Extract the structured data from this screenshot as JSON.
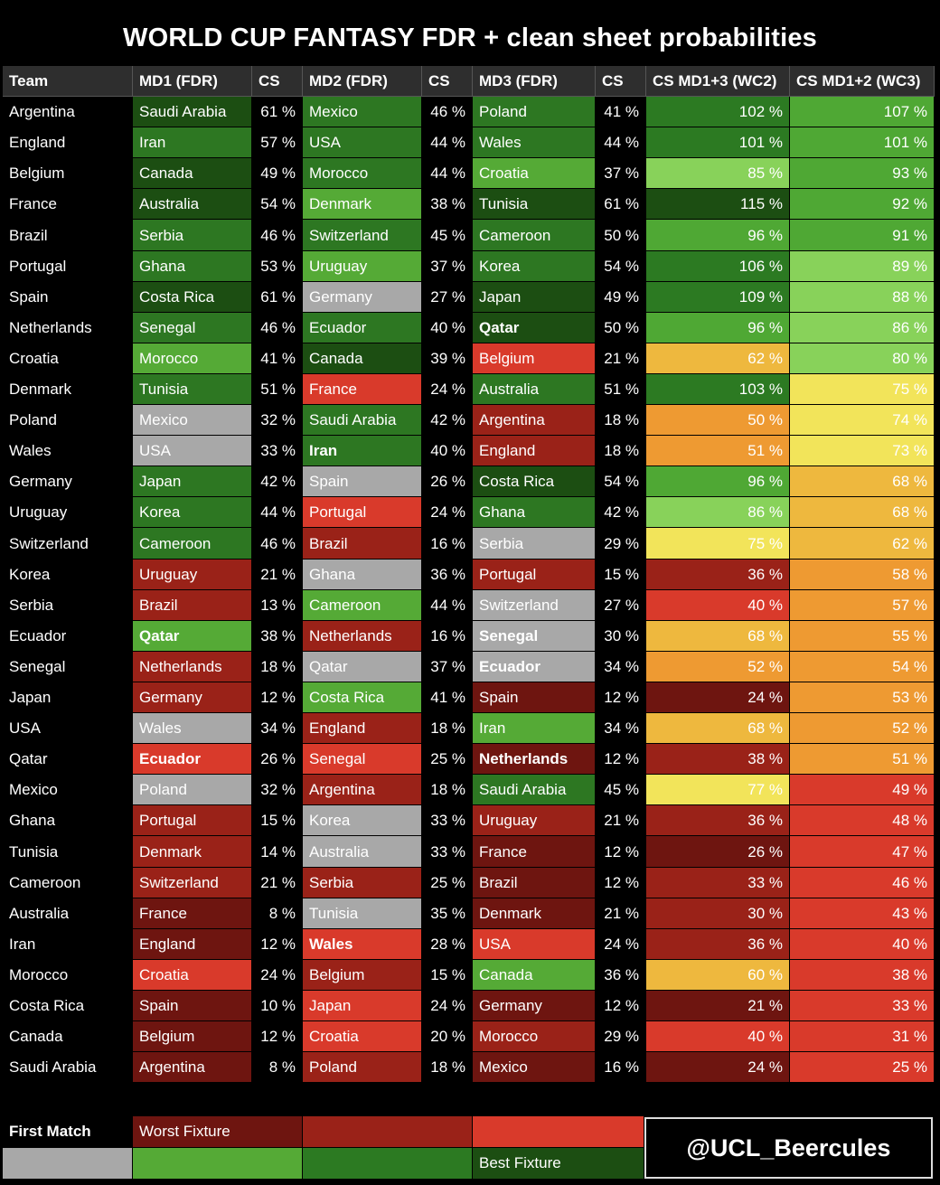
{
  "title": "WORLD CUP FANTASY FDR + clean sheet probabilities",
  "credit": "@UCL_Beercules",
  "legend": {
    "first_match_label": "First Match",
    "worst_label": "Worst Fixture",
    "best_label": "Best Fixture",
    "first_match_color": "#a8a8a8",
    "scale_top": [
      "#6e1510",
      "#9a2218",
      "#d93a2b"
    ],
    "scale_bottom": [
      "#55aa36",
      "#2c7a22",
      "#1c4e12"
    ]
  },
  "fdr_palette": {
    "1": "#1c4e12",
    "2": "#2d7722",
    "3": "#55aa36",
    "4": "#a8a8a8",
    "5": "#d93a2b",
    "6": "#9a2218",
    "7": "#6e1510"
  },
  "heat_palette": {
    "A": "#1c4e12",
    "B": "#2c7a22",
    "C": "#4fa834",
    "D": "#88d25a",
    "E": "#f2e45a",
    "F": "#eeb83e",
    "G": "#ee9a32",
    "H": "#d93a2b",
    "I": "#9a2218",
    "J": "#6e1510"
  },
  "chart_data": {
    "type": "table",
    "columns": [
      "Team",
      "MD1 (FDR)",
      "CS",
      "MD2 (FDR)",
      "CS",
      "MD3 (FDR)",
      "CS",
      "CS MD1+3 (WC2)",
      "CS MD1+2 (WC3)"
    ],
    "rows": [
      {
        "team": "Argentina",
        "md1": "Saudi Arabia",
        "cs1": "61 %",
        "md2": "Mexico",
        "cs2": "46 %",
        "md3": "Poland",
        "cs3": "41 %",
        "wc2": "102 %",
        "wc3": "107 %"
      },
      {
        "team": "England",
        "md1": "Iran",
        "cs1": "57 %",
        "md2": "USA",
        "cs2": "44 %",
        "md3": "Wales",
        "cs3": "44 %",
        "wc2": "101 %",
        "wc3": "101 %"
      },
      {
        "team": "Belgium",
        "md1": "Canada",
        "cs1": "49 %",
        "md2": "Morocco",
        "cs2": "44 %",
        "md3": "Croatia",
        "cs3": "37 %",
        "wc2": "85 %",
        "wc3": "93 %"
      },
      {
        "team": "France",
        "md1": "Australia",
        "cs1": "54 %",
        "md2": "Denmark",
        "cs2": "38 %",
        "md3": "Tunisia",
        "cs3": "61 %",
        "wc2": "115 %",
        "wc3": "92 %"
      },
      {
        "team": "Brazil",
        "md1": "Serbia",
        "cs1": "46 %",
        "md2": "Switzerland",
        "cs2": "45 %",
        "md3": "Cameroon",
        "cs3": "50 %",
        "wc2": "96 %",
        "wc3": "91 %"
      },
      {
        "team": "Portugal",
        "md1": "Ghana",
        "cs1": "53 %",
        "md2": "Uruguay",
        "cs2": "37 %",
        "md3": "Korea",
        "cs3": "54 %",
        "wc2": "106 %",
        "wc3": "89 %"
      },
      {
        "team": "Spain",
        "md1": "Costa Rica",
        "cs1": "61 %",
        "md2": "Germany",
        "cs2": "27 %",
        "md3": "Japan",
        "cs3": "49 %",
        "wc2": "109 %",
        "wc3": "88 %"
      },
      {
        "team": "Netherlands",
        "md1": "Senegal",
        "cs1": "46 %",
        "md2": "Ecuador",
        "cs2": "40 %",
        "md3": "Qatar",
        "cs3": "50 %",
        "wc2": "96 %",
        "wc3": "86 %"
      },
      {
        "team": "Croatia",
        "md1": "Morocco",
        "cs1": "41 %",
        "md2": "Canada",
        "cs2": "39 %",
        "md3": "Belgium",
        "cs3": "21 %",
        "wc2": "62 %",
        "wc3": "80 %"
      },
      {
        "team": "Denmark",
        "md1": "Tunisia",
        "cs1": "51 %",
        "md2": "France",
        "cs2": "24 %",
        "md3": "Australia",
        "cs3": "51 %",
        "wc2": "103 %",
        "wc3": "75 %"
      },
      {
        "team": "Poland",
        "md1": "Mexico",
        "cs1": "32 %",
        "md2": "Saudi Arabia",
        "cs2": "42 %",
        "md3": "Argentina",
        "cs3": "18 %",
        "wc2": "50 %",
        "wc3": "74 %"
      },
      {
        "team": "Wales",
        "md1": "USA",
        "cs1": "33 %",
        "md2": "Iran",
        "cs2": "40 %",
        "md3": "England",
        "cs3": "18 %",
        "wc2": "51 %",
        "wc3": "73 %"
      },
      {
        "team": "Germany",
        "md1": "Japan",
        "cs1": "42 %",
        "md2": "Spain",
        "cs2": "26 %",
        "md3": "Costa Rica",
        "cs3": "54 %",
        "wc2": "96 %",
        "wc3": "68 %"
      },
      {
        "team": "Uruguay",
        "md1": "Korea",
        "cs1": "44 %",
        "md2": "Portugal",
        "cs2": "24 %",
        "md3": "Ghana",
        "cs3": "42 %",
        "wc2": "86 %",
        "wc3": "68 %"
      },
      {
        "team": "Switzerland",
        "md1": "Cameroon",
        "cs1": "46 %",
        "md2": "Brazil",
        "cs2": "16 %",
        "md3": "Serbia",
        "cs3": "29 %",
        "wc2": "75 %",
        "wc3": "62 %"
      },
      {
        "team": "Korea",
        "md1": "Uruguay",
        "cs1": "21 %",
        "md2": "Ghana",
        "cs2": "36 %",
        "md3": "Portugal",
        "cs3": "15 %",
        "wc2": "36 %",
        "wc3": "58 %"
      },
      {
        "team": "Serbia",
        "md1": "Brazil",
        "cs1": "13 %",
        "md2": "Cameroon",
        "cs2": "44 %",
        "md3": "Switzerland",
        "cs3": "27 %",
        "wc2": "40 %",
        "wc3": "57 %"
      },
      {
        "team": "Ecuador",
        "md1": "Qatar",
        "cs1": "38 %",
        "md2": "Netherlands",
        "cs2": "16 %",
        "md3": "Senegal",
        "cs3": "30 %",
        "wc2": "68 %",
        "wc3": "55 %"
      },
      {
        "team": "Senegal",
        "md1": "Netherlands",
        "cs1": "18 %",
        "md2": "Qatar",
        "cs2": "37 %",
        "md3": "Ecuador",
        "cs3": "34 %",
        "wc2": "52 %",
        "wc3": "54 %"
      },
      {
        "team": "Japan",
        "md1": "Germany",
        "cs1": "12 %",
        "md2": "Costa Rica",
        "cs2": "41 %",
        "md3": "Spain",
        "cs3": "12 %",
        "wc2": "24 %",
        "wc3": "53 %"
      },
      {
        "team": "USA",
        "md1": "Wales",
        "cs1": "34 %",
        "md2": "England",
        "cs2": "18 %",
        "md3": "Iran",
        "cs3": "34 %",
        "wc2": "68 %",
        "wc3": "52 %"
      },
      {
        "team": "Qatar",
        "md1": "Ecuador",
        "cs1": "26 %",
        "md2": "Senegal",
        "cs2": "25 %",
        "md3": "Netherlands",
        "cs3": "12 %",
        "wc2": "38 %",
        "wc3": "51 %"
      },
      {
        "team": "Mexico",
        "md1": "Poland",
        "cs1": "32 %",
        "md2": "Argentina",
        "cs2": "18 %",
        "md3": "Saudi Arabia",
        "cs3": "45 %",
        "wc2": "77 %",
        "wc3": "49 %"
      },
      {
        "team": "Ghana",
        "md1": "Portugal",
        "cs1": "15 %",
        "md2": "Korea",
        "cs2": "33 %",
        "md3": "Uruguay",
        "cs3": "21 %",
        "wc2": "36 %",
        "wc3": "48 %"
      },
      {
        "team": "Tunisia",
        "md1": "Denmark",
        "cs1": "14 %",
        "md2": "Australia",
        "cs2": "33 %",
        "md3": "France",
        "cs3": "12 %",
        "wc2": "26 %",
        "wc3": "47 %"
      },
      {
        "team": "Cameroon",
        "md1": "Switzerland",
        "cs1": "21 %",
        "md2": "Serbia",
        "cs2": "25 %",
        "md3": "Brazil",
        "cs3": "12 %",
        "wc2": "33 %",
        "wc3": "46 %"
      },
      {
        "team": "Australia",
        "md1": "France",
        "cs1": "8 %",
        "md2": "Tunisia",
        "cs2": "35 %",
        "md3": "Denmark",
        "cs3": "21 %",
        "wc2": "30 %",
        "wc3": "43 %"
      },
      {
        "team": "Iran",
        "md1": "England",
        "cs1": "12 %",
        "md2": "Wales",
        "cs2": "28 %",
        "md3": "USA",
        "cs3": "24 %",
        "wc2": "36 %",
        "wc3": "40 %"
      },
      {
        "team": "Morocco",
        "md1": "Croatia",
        "cs1": "24 %",
        "md2": "Belgium",
        "cs2": "15 %",
        "md3": "Canada",
        "cs3": "36 %",
        "wc2": "60 %",
        "wc3": "38 %"
      },
      {
        "team": "Costa Rica",
        "md1": "Spain",
        "cs1": "10 %",
        "md2": "Japan",
        "cs2": "24 %",
        "md3": "Germany",
        "cs3": "12 %",
        "wc2": "21 %",
        "wc3": "33 %"
      },
      {
        "team": "Canada",
        "md1": "Belgium",
        "cs1": "12 %",
        "md2": "Croatia",
        "cs2": "20 %",
        "md3": "Morocco",
        "cs3": "29 %",
        "wc2": "40 %",
        "wc3": "31 %"
      },
      {
        "team": "Saudi Arabia",
        "md1": "Argentina",
        "cs1": "8 %",
        "md2": "Poland",
        "cs2": "18 %",
        "md3": "Mexico",
        "cs3": "16 %",
        "wc2": "24 %",
        "wc3": "25 %"
      }
    ],
    "fdr": [
      [
        1,
        2,
        2
      ],
      [
        2,
        2,
        2
      ],
      [
        1,
        2,
        3
      ],
      [
        1,
        3,
        1
      ],
      [
        2,
        2,
        2
      ],
      [
        2,
        3,
        2
      ],
      [
        1,
        4,
        1
      ],
      [
        2,
        2,
        1
      ],
      [
        3,
        1,
        5
      ],
      [
        2,
        5,
        2
      ],
      [
        4,
        2,
        6
      ],
      [
        4,
        2,
        6
      ],
      [
        2,
        4,
        1
      ],
      [
        2,
        5,
        2
      ],
      [
        2,
        6,
        4
      ],
      [
        6,
        4,
        6
      ],
      [
        6,
        3,
        4
      ],
      [
        3,
        6,
        4
      ],
      [
        6,
        4,
        4
      ],
      [
        6,
        3,
        7
      ],
      [
        4,
        6,
        3
      ],
      [
        5,
        5,
        7
      ],
      [
        4,
        6,
        2
      ],
      [
        6,
        4,
        6
      ],
      [
        6,
        4,
        7
      ],
      [
        6,
        6,
        7
      ],
      [
        7,
        4,
        7
      ],
      [
        7,
        5,
        5
      ],
      [
        5,
        6,
        3
      ],
      [
        7,
        5,
        7
      ],
      [
        7,
        5,
        6
      ],
      [
        7,
        6,
        7
      ]
    ],
    "bold_opponents": [
      [
        0,
        0,
        0
      ],
      [
        0,
        0,
        0
      ],
      [
        0,
        0,
        0
      ],
      [
        0,
        0,
        0
      ],
      [
        0,
        0,
        0
      ],
      [
        0,
        0,
        0
      ],
      [
        0,
        0,
        0
      ],
      [
        0,
        0,
        1
      ],
      [
        0,
        0,
        0
      ],
      [
        0,
        0,
        0
      ],
      [
        0,
        0,
        0
      ],
      [
        0,
        1,
        0
      ],
      [
        0,
        0,
        0
      ],
      [
        0,
        0,
        0
      ],
      [
        0,
        0,
        0
      ],
      [
        0,
        0,
        0
      ],
      [
        0,
        0,
        0
      ],
      [
        1,
        0,
        1
      ],
      [
        0,
        0,
        1
      ],
      [
        0,
        0,
        0
      ],
      [
        0,
        0,
        0
      ],
      [
        1,
        0,
        1
      ],
      [
        0,
        0,
        0
      ],
      [
        0,
        0,
        0
      ],
      [
        0,
        0,
        0
      ],
      [
        0,
        0,
        0
      ],
      [
        0,
        0,
        0
      ],
      [
        0,
        1,
        0
      ],
      [
        0,
        0,
        0
      ],
      [
        0,
        0,
        0
      ],
      [
        0,
        0,
        0
      ],
      [
        0,
        0,
        0
      ]
    ],
    "heat_wc2": [
      "B",
      "B",
      "D",
      "A",
      "C",
      "B",
      "B",
      "C",
      "F",
      "B",
      "G",
      "G",
      "C",
      "D",
      "E",
      "I",
      "H",
      "F",
      "G",
      "J",
      "F",
      "I",
      "E",
      "I",
      "J",
      "I",
      "I",
      "I",
      "F",
      "J",
      "H",
      "J"
    ],
    "heat_wc3": [
      "C",
      "C",
      "C",
      "C",
      "C",
      "D",
      "D",
      "D",
      "D",
      "E",
      "E",
      "E",
      "F",
      "F",
      "F",
      "G",
      "G",
      "G",
      "G",
      "G",
      "G",
      "G",
      "H",
      "H",
      "H",
      "H",
      "H",
      "H",
      "H",
      "H",
      "H",
      "H"
    ]
  }
}
